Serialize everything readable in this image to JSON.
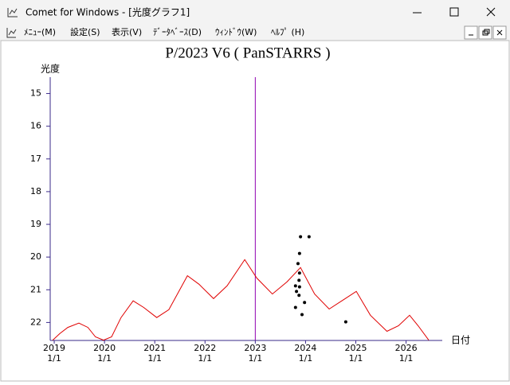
{
  "window": {
    "title": "Comet for Windows - [光度グラフ1]"
  },
  "menu": [
    "ﾒﾆｭｰ(M)",
    "設定(S)",
    "表示(V)",
    "ﾃﾞｰﾀﾍﾞｰｽ(D)",
    "ｳｨﾝﾄﾞｳ(W)",
    "ﾍﾙﾌﾟ (H)"
  ],
  "chart_data": {
    "type": "line",
    "title": "P/2023 V6 ( PanSTARRS )",
    "ylabel": "光度",
    "xlabel": "日付",
    "xlim": [
      2018.92,
      2026.72
    ],
    "ylim": [
      14.5,
      22.55
    ],
    "y_inverted": true,
    "yticks": [
      15,
      16,
      17,
      18,
      19,
      20,
      21,
      22
    ],
    "xticks": [
      {
        "value": 2019,
        "label": "2019"
      },
      {
        "value": 2020,
        "label": "2020"
      },
      {
        "value": 2021,
        "label": "2021"
      },
      {
        "value": 2022,
        "label": "2022"
      },
      {
        "value": 2023,
        "label": "2023"
      },
      {
        "value": 2024,
        "label": "2024"
      },
      {
        "value": 2025,
        "label": "2025"
      },
      {
        "value": 2026,
        "label": "2026"
      }
    ],
    "xtick_sublabels": [
      "1/1",
      "1/1",
      "1/1",
      "1/1",
      "1/1",
      "1/1",
      "1/1",
      "1/1"
    ],
    "marker_x": 2023,
    "marker_color": "#9000b0",
    "axis_color": "#3a2a8a",
    "series": [
      {
        "type": "line",
        "color": "#e00000",
        "x": [
          2018.97,
          2019.11,
          2019.27,
          2019.49,
          2019.67,
          2019.82,
          2019.98,
          2020.14,
          2020.33,
          2020.57,
          2020.78,
          2021.04,
          2021.28,
          2021.65,
          2021.88,
          2022.17,
          2022.44,
          2022.79,
          2023.03,
          2023.34,
          2023.63,
          2023.9,
          2024.18,
          2024.47,
          2024.74,
          2025.01,
          2025.29,
          2025.62,
          2025.85,
          2026.07,
          2026.24,
          2026.45
        ],
        "values": [
          22.54,
          22.34,
          22.15,
          22.02,
          22.15,
          22.44,
          22.54,
          22.44,
          21.85,
          21.34,
          21.54,
          21.85,
          21.61,
          20.57,
          20.83,
          21.27,
          20.88,
          20.08,
          20.64,
          21.13,
          20.76,
          20.32,
          21.13,
          21.59,
          21.32,
          21.05,
          21.78,
          22.27,
          22.1,
          21.78,
          22.1,
          22.54
        ]
      },
      {
        "type": "scatter",
        "color": "#000000",
        "x": [
          2023.9,
          2024.07,
          2023.88,
          2023.85,
          2023.88,
          2023.87,
          2023.8,
          2023.88,
          2023.82,
          2023.87,
          2023.98,
          2023.8,
          2023.93,
          2024.8
        ],
        "values": [
          19.38,
          19.38,
          19.89,
          20.2,
          20.49,
          20.71,
          20.88,
          20.91,
          21.05,
          21.17,
          21.39,
          21.54,
          21.76,
          21.98
        ]
      }
    ]
  }
}
